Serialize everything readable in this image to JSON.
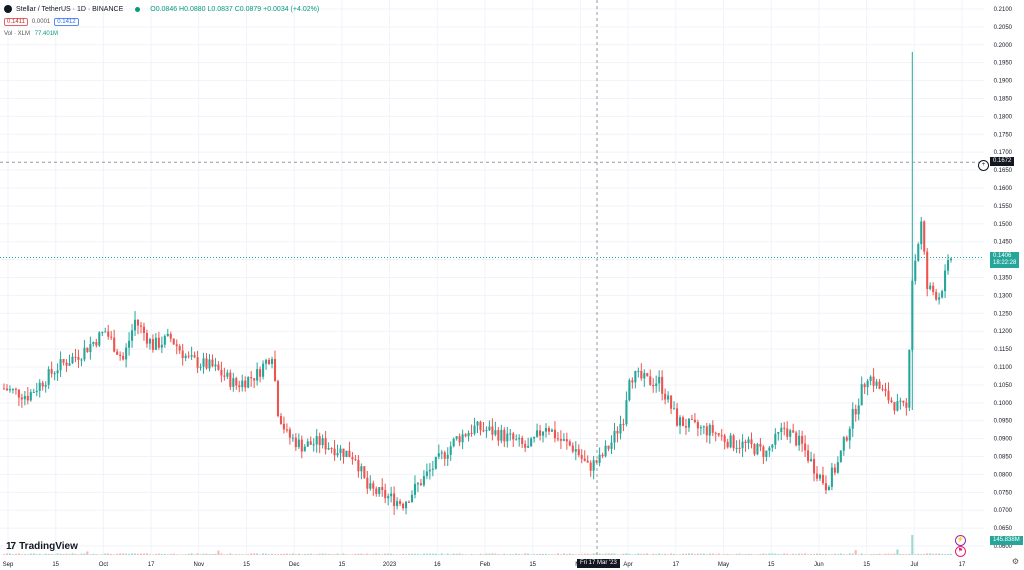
{
  "legend": {
    "symbol": "Stellar / TetherUS · 1D · BINANCE",
    "ohlc": "O0.0846 H0.0880 L0.0837 C0.0879 +0.0034 (+4.02%)",
    "sell_price": "0.1411",
    "spread": "0.0001",
    "buy_price": "0.1412",
    "volume_label": "Vol · XLM",
    "volume_value": "77.401M"
  },
  "brand": {
    "name": "TradingView",
    "mark": "17"
  },
  "crosshair": {
    "date_label": "Fri 17 Mar '23",
    "price_label": "0.1672",
    "price": 0.1672
  },
  "current": {
    "price_label": "0.1406",
    "countdown": "18:22:28",
    "price": 0.1406
  },
  "volume_tag": "145.838M",
  "colors": {
    "up": "#26a69a",
    "down": "#ef5350",
    "up_vol": "#9fd9d1",
    "down_vol": "#f5b7b5",
    "accent": "#089981",
    "crosshair_tag": "#131722"
  },
  "chart_data": {
    "type": "candlestick",
    "title": "Stellar / TetherUS · 1D · BINANCE",
    "ylabel": "",
    "xlabel": "",
    "ylim": [
      0.0575,
      0.2125
    ],
    "y_ticks": [
      "0.2100",
      "0.2050",
      "0.2000",
      "0.1950",
      "0.1900",
      "0.1850",
      "0.1800",
      "0.1750",
      "0.1700",
      "0.1650",
      "0.1600",
      "0.1550",
      "0.1500",
      "0.1450",
      "0.1400",
      "0.1350",
      "0.1300",
      "0.1250",
      "0.1200",
      "0.1150",
      "0.1100",
      "0.1050",
      "0.1000",
      "0.0950",
      "0.0900",
      "0.0850",
      "0.0800",
      "0.0750",
      "0.0700",
      "0.0650",
      "0.0600"
    ],
    "x_labels": [
      "Sep",
      "15",
      "Oct",
      "17",
      "Nov",
      "15",
      "Dec",
      "15",
      "2023",
      "16",
      "Feb",
      "15",
      "Mar",
      "Apr",
      "17",
      "May",
      "15",
      "Jun",
      "15",
      "Jul",
      "17"
    ],
    "grid": true,
    "close_path": [
      [
        0,
        0.104
      ],
      [
        8,
        0.102
      ],
      [
        18,
        0.11
      ],
      [
        26,
        0.114
      ],
      [
        34,
        0.12
      ],
      [
        40,
        0.112
      ],
      [
        44,
        0.123
      ],
      [
        50,
        0.116
      ],
      [
        56,
        0.118
      ],
      [
        62,
        0.112
      ],
      [
        70,
        0.11
      ],
      [
        78,
        0.105
      ],
      [
        85,
        0.108
      ],
      [
        90,
        0.114
      ],
      [
        92,
        0.098
      ],
      [
        95,
        0.091
      ],
      [
        100,
        0.088
      ],
      [
        106,
        0.089
      ],
      [
        112,
        0.087
      ],
      [
        118,
        0.085
      ],
      [
        122,
        0.076
      ],
      [
        128,
        0.074
      ],
      [
        134,
        0.072
      ],
      [
        140,
        0.078
      ],
      [
        146,
        0.084
      ],
      [
        152,
        0.09
      ],
      [
        158,
        0.093
      ],
      [
        164,
        0.092
      ],
      [
        170,
        0.09
      ],
      [
        176,
        0.087
      ],
      [
        182,
        0.094
      ],
      [
        186,
        0.09
      ],
      [
        192,
        0.087
      ],
      [
        196,
        0.082
      ],
      [
        200,
        0.084
      ],
      [
        204,
        0.089
      ],
      [
        208,
        0.096
      ],
      [
        210,
        0.108
      ],
      [
        216,
        0.106
      ],
      [
        220,
        0.106
      ],
      [
        226,
        0.095
      ],
      [
        232,
        0.093
      ],
      [
        238,
        0.092
      ],
      [
        244,
        0.089
      ],
      [
        250,
        0.088
      ],
      [
        256,
        0.086
      ],
      [
        262,
        0.093
      ],
      [
        268,
        0.088
      ],
      [
        272,
        0.082
      ],
      [
        276,
        0.077
      ],
      [
        280,
        0.083
      ],
      [
        284,
        0.094
      ],
      [
        290,
        0.108
      ],
      [
        296,
        0.102
      ],
      [
        300,
        0.099
      ],
      [
        303,
        0.098
      ],
      [
        305,
        0.135
      ],
      [
        308,
        0.15
      ],
      [
        310,
        0.132
      ],
      [
        314,
        0.13
      ],
      [
        318,
        0.1406
      ]
    ],
    "vol_baseline_M": [
      4,
      12
    ],
    "vol_spikes_M": [
      [
        28,
        26
      ],
      [
        72,
        32
      ],
      [
        286,
        36
      ],
      [
        300,
        40
      ],
      [
        305,
        145.838
      ]
    ],
    "annotations": {
      "max_wick": 0.198
    }
  }
}
